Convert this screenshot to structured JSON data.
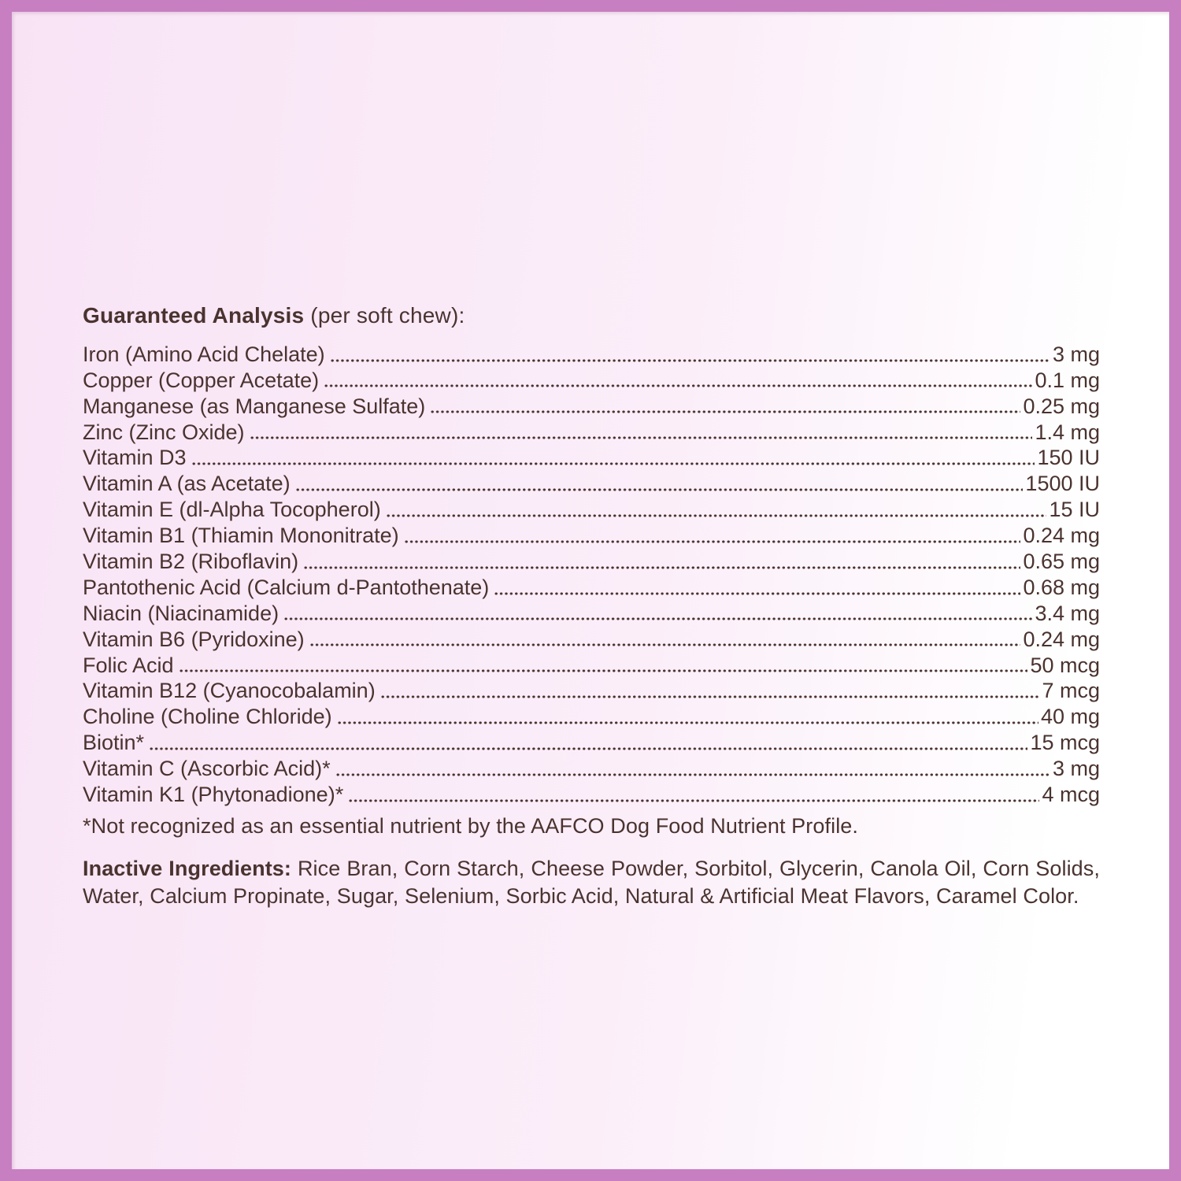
{
  "page": {
    "title": {
      "bold": "Guaranteed Analysis",
      "suffix": " (per soft chew):"
    },
    "analysis_rows": [
      {
        "label": "Iron (Amino Acid Chelate)",
        "value": "3 mg"
      },
      {
        "label": "Copper (Copper Acetate)",
        "value": "0.1 mg"
      },
      {
        "label": "Manganese (as Manganese Sulfate)",
        "value": "0.25 mg"
      },
      {
        "label": "Zinc (Zinc Oxide)",
        "value": "1.4 mg"
      },
      {
        "label": "Vitamin D3",
        "value": "150 IU"
      },
      {
        "label": "Vitamin A (as Acetate)",
        "value": "1500 IU"
      },
      {
        "label": "Vitamin E (dl-Alpha Tocopherol)",
        "value": "15 IU"
      },
      {
        "label": "Vitamin B1 (Thiamin Mononitrate)",
        "value": "0.24 mg"
      },
      {
        "label": "Vitamin B2 (Riboflavin)",
        "value": "0.65 mg"
      },
      {
        "label": "Pantothenic Acid (Calcium d-Pantothenate)",
        "value": "0.68 mg"
      },
      {
        "label": "Niacin (Niacinamide)",
        "value": "3.4 mg"
      },
      {
        "label": "Vitamin B6 (Pyridoxine)",
        "value": "0.24 mg"
      },
      {
        "label": "Folic Acid",
        "value": "50 mcg"
      },
      {
        "label": "Vitamin B12 (Cyanocobalamin)",
        "value": "7 mcg"
      },
      {
        "label": "Choline (Choline Chloride)",
        "value": "40 mg"
      },
      {
        "label": "Biotin*",
        "value": "15 mcg"
      },
      {
        "label": "Vitamin C (Ascorbic Acid)*",
        "value": "3 mg"
      },
      {
        "label": "Vitamin K1 (Phytonadione)*",
        "value": "4 mcg"
      }
    ],
    "footnote": "*Not recognized as an essential nutrient by the AAFCO Dog Food Nutrient Profile.",
    "inactive": {
      "heading": "Inactive Ingredients:",
      "text": " Rice Bran, Corn Starch, Cheese Powder, Sorbitol, Glycerin, Canola Oil, Corn Solids, Water, Calcium Propinate, Sugar, Selenium, Sorbic Acid, Natural & Artificial Meat Flavors, Caramel Color."
    },
    "colors": {
      "border": "#c77fc1",
      "text": "#4a332f",
      "bg_left": "#f8e3f5",
      "bg_right": "#ffffff"
    }
  }
}
